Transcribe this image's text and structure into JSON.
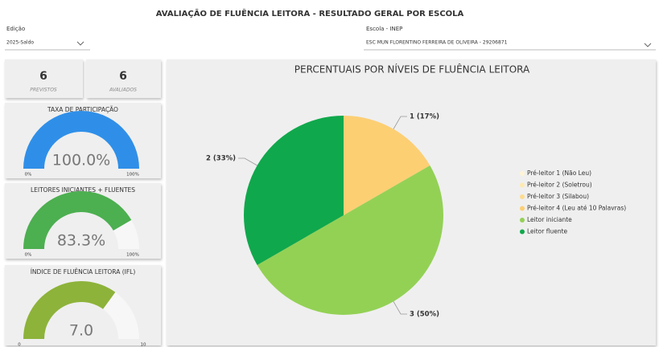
{
  "header": {
    "title": "AVALIAÇÃO DE FLUÊNCIA LEITORA - RESULTADO GERAL POR ESCOLA"
  },
  "filters": [
    {
      "label": "Edição",
      "value": "2025-Saldo"
    },
    {
      "label": "Escola - INEP",
      "value": "ESC MUN FLORENTINO FERREIRA DE OLIVEIRA - 29206871"
    }
  ],
  "cards": [
    {
      "value": 6,
      "label": "PREVISTOS"
    },
    {
      "value": 6,
      "label": "AVALIADOS"
    }
  ],
  "gauges": [
    {
      "title": "TAXA DE PARTICIPAÇÃO",
      "value": 100,
      "value_label": "100.0%",
      "min": {
        "value": 0,
        "label": "0%"
      },
      "max": {
        "value": 100,
        "label": "100%"
      },
      "color": "#2f8fe8"
    },
    {
      "title": "LEITORES INICIANTES + FLUENTES",
      "value": 83.3,
      "value_label": "83.3%",
      "min": {
        "value": 0,
        "label": "0%"
      },
      "max": {
        "value": 100,
        "label": "100%"
      },
      "color": "#4caf50"
    },
    {
      "title": "ÍNDICE DE FLUÊNCIA LEITORA (IFL)",
      "value": 7,
      "value_label": "7.0",
      "min": 0,
      "max": 10,
      "color": "#8db33a"
    }
  ],
  "chart_data": {
    "type": "pie",
    "title": "PERCENTUAIS POR NÍVEIS DE FLUÊNCIA LEITORA",
    "categories": [
      "Pré-leitor 1 (Não Leu)",
      "Pré-leitor 2 (Soletrou)",
      "Pré-leitor 3 (Silabou)",
      "Pré-leitor 4 (Leu até 10 Palavras)",
      "Leitor iniciante",
      "Leitor fluente"
    ],
    "values": [
      0,
      0,
      0,
      1,
      3,
      2
    ],
    "value_labels": [
      null,
      null,
      null,
      "1 (17%)",
      "3 (50%)",
      "2 (33%)"
    ],
    "colors": [
      "#fff4d6",
      "#feeab0",
      "#fddc8f",
      "#fccf73",
      "#93d155",
      "#10a84c"
    ]
  }
}
